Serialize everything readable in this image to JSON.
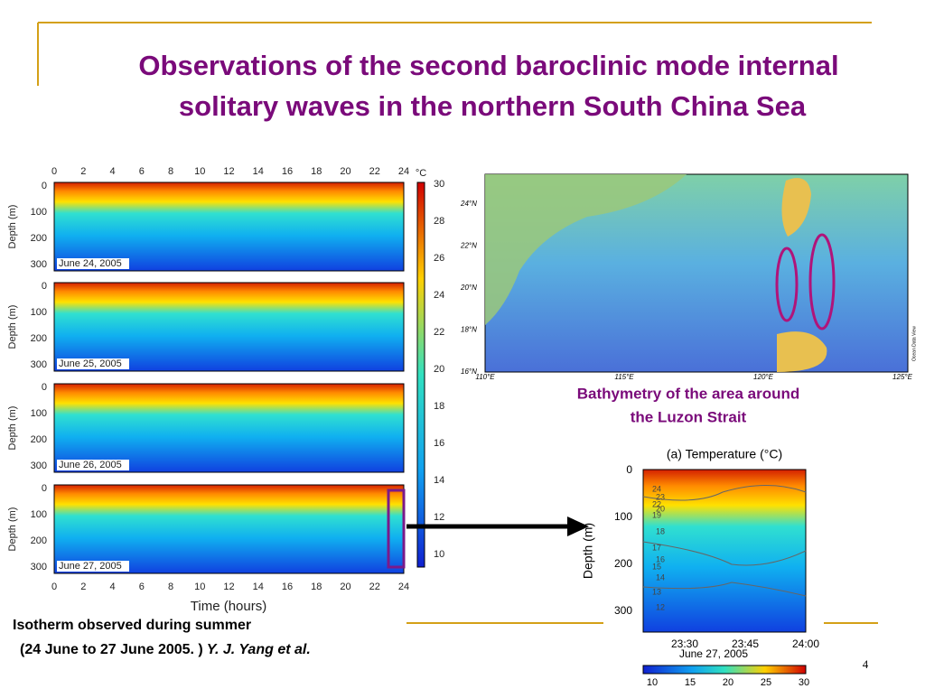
{
  "title": "Observations of the second baroclinic mode internal solitary waves in the northern South China Sea",
  "left_figure": {
    "x_ticks": [
      "0",
      "2",
      "4",
      "6",
      "8",
      "10",
      "12",
      "14",
      "16",
      "18",
      "20",
      "22",
      "24"
    ],
    "x_label": "Time (hours)",
    "y_label": "Depth (m)",
    "y_ticks": [
      "0",
      "100",
      "200",
      "300"
    ],
    "panel_dates": [
      "June 24, 2005",
      "June 25, 2005",
      "June 26, 2005",
      "June 27, 2005"
    ],
    "colorbar_unit": "°C",
    "colorbar_ticks": [
      "30",
      "28",
      "26",
      "24",
      "22",
      "20",
      "18",
      "16",
      "14",
      "12",
      "10"
    ]
  },
  "map": {
    "lat_labels": [
      "24°N",
      "22°N",
      "20°N",
      "18°N",
      "16°N"
    ],
    "lon_labels": [
      "110°E",
      "115°E",
      "120°E",
      "125°E"
    ],
    "credit": "Ocean Data View",
    "caption": [
      "Bathymetry of the area around",
      "the Luzon Strait"
    ]
  },
  "right_figure": {
    "title": "(a) Temperature (°C)",
    "y_label": "Depth (m)",
    "y_ticks": [
      "0",
      "100",
      "200",
      "300"
    ],
    "x_ticks": [
      "23:30",
      "23:45",
      "24:00"
    ],
    "date": "June 27, 2005",
    "contour_labels": [
      "24",
      "23",
      "22",
      "20",
      "19",
      "18",
      "17",
      "16",
      "15",
      "14",
      "13",
      "12"
    ],
    "colorbar_ticks": [
      "10",
      "15",
      "20",
      "25",
      "30"
    ]
  },
  "footnote": {
    "line1": "Isotherm observed during  summer",
    "line2": "(24 June to 27 June 2005. ) ",
    "authors": "Y. J. Yang et al."
  },
  "page_number": "4"
}
